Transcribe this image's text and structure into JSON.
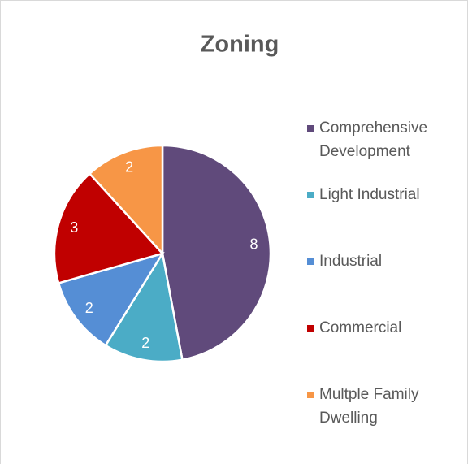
{
  "chart_data": {
    "type": "pie",
    "title": "Zoning",
    "categories": [
      "Comprehensive Development",
      "Light Industrial",
      "Industrial",
      "Commercial",
      "Multple Family Dwelling"
    ],
    "values": [
      8,
      2,
      2,
      3,
      2
    ],
    "colors": [
      "#604a7b",
      "#4bacc6",
      "#558ed5",
      "#c00000",
      "#f79646"
    ],
    "legend": "right"
  }
}
